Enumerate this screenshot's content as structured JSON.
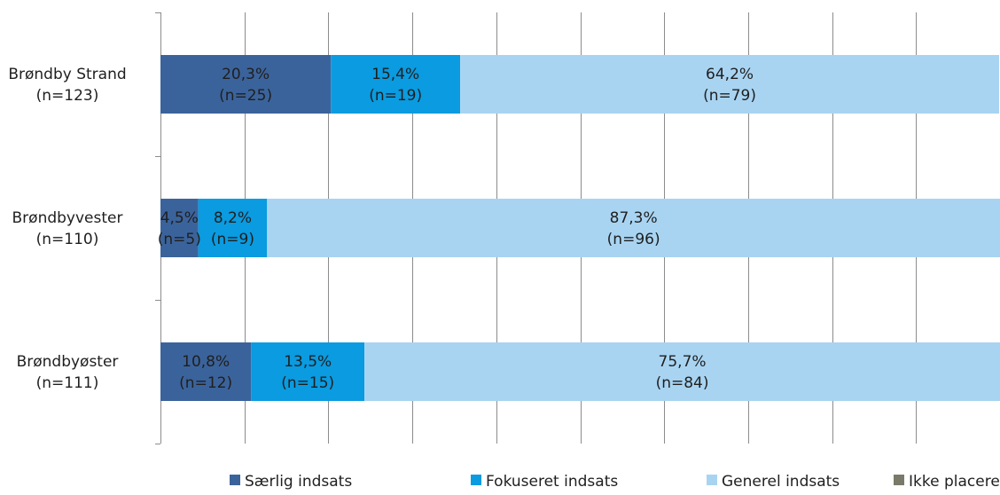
{
  "chart_data": {
    "type": "bar",
    "orientation": "horizontal",
    "stacked": "percent",
    "grid": true,
    "legend_position": "bottom",
    "xlim": [
      0,
      100
    ],
    "categories": [
      {
        "name": "Brøndby Strand",
        "n_label": "(n=123)"
      },
      {
        "name": "Brøndbyvester",
        "n_label": "(n=110)"
      },
      {
        "name": "Brøndbyøster",
        "n_label": "(n=111)"
      }
    ],
    "series": [
      {
        "name": "Særlig indsats",
        "color": "#3B639B",
        "values": [
          20.3,
          4.5,
          10.8
        ],
        "pct_labels": [
          "20,3%",
          "4,5%",
          "10,8%"
        ],
        "n_labels": [
          "(n=25)",
          "(n=5)",
          "(n=12)"
        ]
      },
      {
        "name": "Fokuseret indsats",
        "color": "#0A9BE0",
        "values": [
          15.4,
          8.2,
          13.5
        ],
        "pct_labels": [
          "15,4%",
          "8,2%",
          "13,5%"
        ],
        "n_labels": [
          "(n=19)",
          "(n=9)",
          "(n=15)"
        ]
      },
      {
        "name": "Generel indsats",
        "color": "#A8D4F2",
        "values": [
          64.2,
          87.3,
          75.7
        ],
        "pct_labels": [
          "64,2%",
          "87,3%",
          "75,7%"
        ],
        "n_labels": [
          "(n=79)",
          "(n=96)",
          "(n=84)"
        ]
      },
      {
        "name": "Ikke placeret",
        "color": "#7A7A6A",
        "values": [
          0,
          0,
          0
        ],
        "pct_labels": [
          "",
          "",
          ""
        ],
        "n_labels": [
          "",
          "",
          ""
        ]
      }
    ]
  }
}
